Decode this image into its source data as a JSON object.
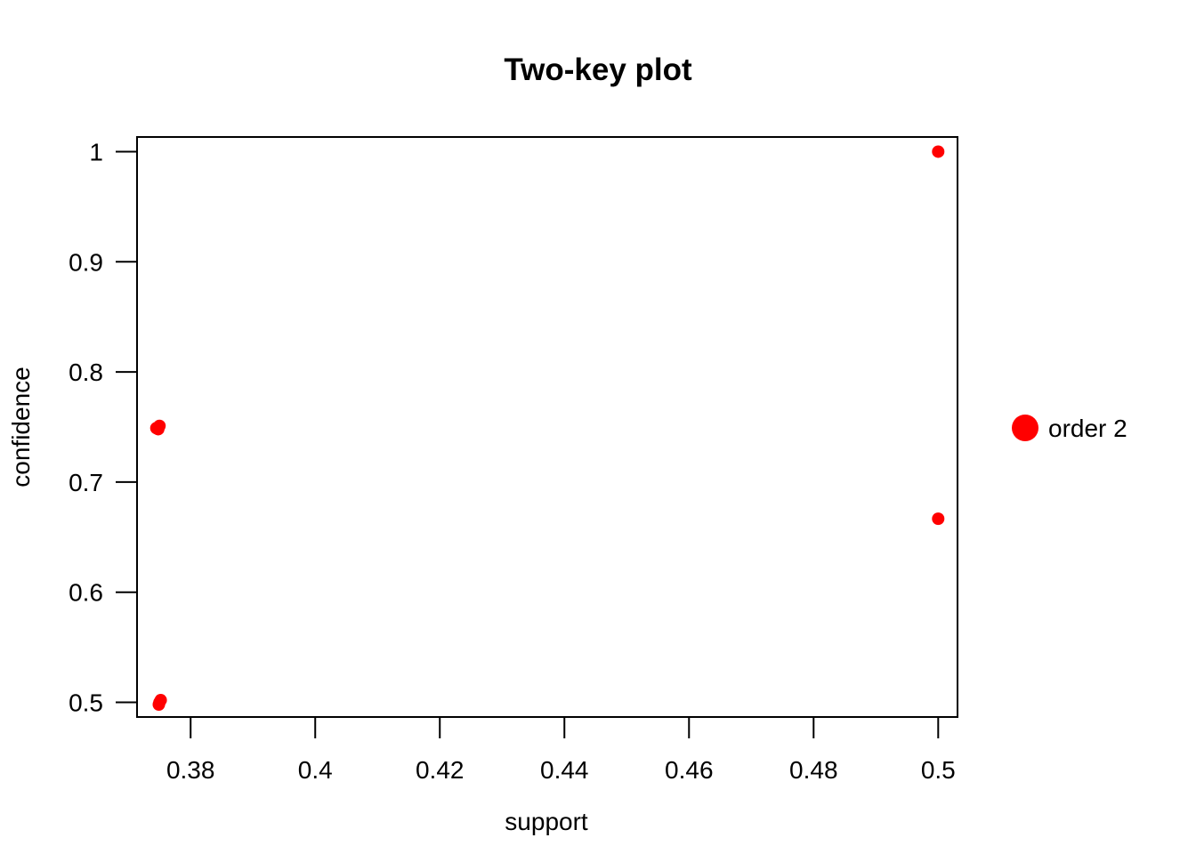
{
  "chart_data": {
    "type": "scatter",
    "title": "Two-key plot",
    "xlabel": "support",
    "ylabel": "confidence",
    "xlim": [
      0.3714,
      0.5031
    ],
    "ylim": [
      0.4867,
      1.0133
    ],
    "x_ticks": [
      0.38,
      0.4,
      0.42,
      0.44,
      0.46,
      0.48,
      0.5
    ],
    "x_tick_labels": [
      "0.38",
      "0.4",
      "0.42",
      "0.44",
      "0.46",
      "0.48",
      "0.5"
    ],
    "y_ticks": [
      0.5,
      0.6,
      0.7,
      0.8,
      0.9,
      1.0
    ],
    "y_tick_labels": [
      "0.5",
      "0.6",
      "0.7",
      "0.8",
      "0.9",
      "1"
    ],
    "grid": false,
    "legend_position": "right",
    "series": [
      {
        "name": "order 2",
        "color": "#ff0000",
        "points": [
          {
            "x": 0.5,
            "y": 1.0
          },
          {
            "x": 0.5,
            "y": 0.6667
          },
          {
            "x": 0.3745,
            "y": 0.749
          },
          {
            "x": 0.375,
            "y": 0.751
          },
          {
            "x": 0.3748,
            "y": 0.748
          },
          {
            "x": 0.375,
            "y": 0.5
          },
          {
            "x": 0.3752,
            "y": 0.502
          },
          {
            "x": 0.3749,
            "y": 0.498
          }
        ]
      }
    ]
  }
}
